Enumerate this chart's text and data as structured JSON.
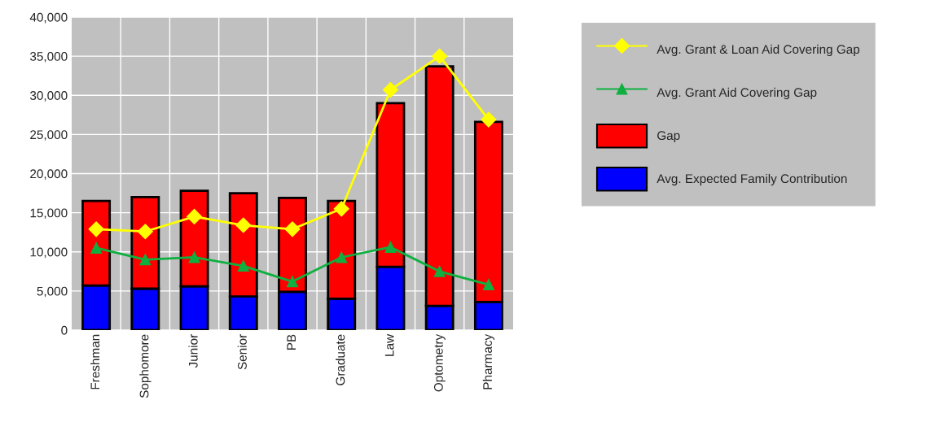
{
  "chart_data": {
    "type": "bar",
    "stacked": true,
    "categories": [
      "Freshman",
      "Sophomore",
      "Junior",
      "Senior",
      "PB",
      "Graduate",
      "Law",
      "Optometry",
      "Pharmacy"
    ],
    "series": [
      {
        "name": "Avg. Expected Family Contribution",
        "color": "#0000ff",
        "values": [
          5700,
          5300,
          5600,
          4300,
          4900,
          4000,
          8100,
          3100,
          3600
        ]
      },
      {
        "name": "Gap",
        "color": "#ff0000",
        "values": [
          10800,
          11700,
          12200,
          13200,
          12000,
          12500,
          20900,
          30600,
          23000
        ]
      },
      {
        "name": "Avg. Grant Aid Covering Gap",
        "type": "line",
        "color": "#0fb040",
        "marker": "triangle",
        "values": [
          10500,
          9000,
          9300,
          8200,
          6200,
          9300,
          10600,
          7500,
          5800
        ]
      },
      {
        "name": "Avg. Grant & Loan Aid Covering Gap",
        "type": "line",
        "color": "#ffff00",
        "marker": "diamond",
        "values": [
          12900,
          12600,
          14500,
          13400,
          12900,
          15500,
          30700,
          35000,
          26900
        ]
      }
    ],
    "ylim": [
      0,
      40000
    ],
    "yticks": [
      {
        "value": 0,
        "label": "0"
      },
      {
        "value": 5000,
        "label": "5,000"
      },
      {
        "value": 10000,
        "label": "10,000"
      },
      {
        "value": 15000,
        "label": "15,000"
      },
      {
        "value": 20000,
        "label": "20,000"
      },
      {
        "value": 25000,
        "label": "25,000"
      },
      {
        "value": 30000,
        "label": "30,000"
      },
      {
        "value": 35000,
        "label": "35,000"
      },
      {
        "value": 40000,
        "label": "40,000"
      }
    ],
    "grid": true,
    "legend": "top right"
  }
}
